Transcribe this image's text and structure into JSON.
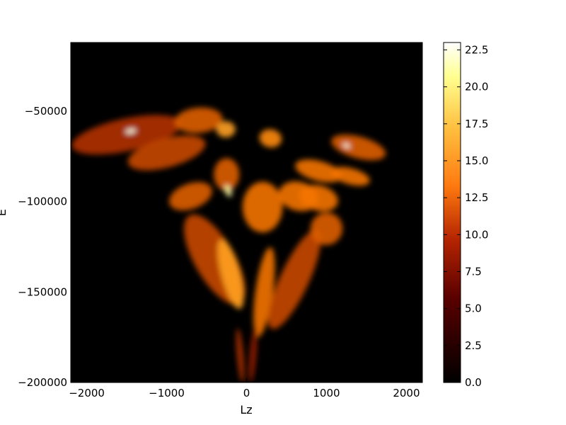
{
  "chart_data": {
    "type": "heatmap",
    "title": "",
    "xlabel": "Lz",
    "ylabel": "E",
    "xlim": [
      -2200,
      2200
    ],
    "ylim": [
      -200000,
      -12000
    ],
    "xticks": [
      -2000,
      -1000,
      0,
      1000,
      2000
    ],
    "xtick_labels": [
      "−2000",
      "−1000",
      "0",
      "1000",
      "2000"
    ],
    "yticks": [
      -50000,
      -100000,
      -150000,
      -200000
    ],
    "ytick_labels": [
      "−50000",
      "−100000",
      "−150000",
      "−200000"
    ],
    "background_value": 0,
    "colormap": "afmhot",
    "colorbar": {
      "min": 0,
      "max": 23,
      "ticks": [
        0,
        2.5,
        5,
        7.5,
        10,
        12.5,
        15,
        17.5,
        20,
        22.5
      ],
      "tick_labels": [
        "0.0",
        "2.5",
        "5.0",
        "7.5",
        "10.0",
        "12.5",
        "15.0",
        "17.5",
        "20.0",
        "22.5"
      ]
    },
    "grid": false,
    "features": [
      {
        "name": "left-upper-band",
        "x": -1500,
        "y": -63000,
        "sx": 700,
        "sy": 9000,
        "angle": -12,
        "value": 8
      },
      {
        "name": "left-mid-band",
        "x": -1000,
        "y": -73000,
        "sx": 500,
        "sy": 8000,
        "angle": -15,
        "value": 9
      },
      {
        "name": "top-center-lobe",
        "x": -600,
        "y": -55000,
        "sx": 300,
        "sy": 7000,
        "angle": -5,
        "value": 10
      },
      {
        "name": "top-small-lobe",
        "x": -260,
        "y": -60000,
        "sx": 120,
        "sy": 4500,
        "angle": 0,
        "value": 13
      },
      {
        "name": "top-right-lobe",
        "x": 300,
        "y": -65000,
        "sx": 140,
        "sy": 5000,
        "angle": 10,
        "value": 12
      },
      {
        "name": "center-left-lobe",
        "x": -250,
        "y": -85000,
        "sx": 160,
        "sy": 9000,
        "angle": 0,
        "value": 10
      },
      {
        "name": "left-streak",
        "x": -700,
        "y": -97000,
        "sx": 280,
        "sy": 7000,
        "angle": -20,
        "value": 10
      },
      {
        "name": "center-lobe",
        "x": 200,
        "y": -103000,
        "sx": 250,
        "sy": 14000,
        "angle": 0,
        "value": 11
      },
      {
        "name": "right-mid-lobe-1",
        "x": 650,
        "y": -97000,
        "sx": 250,
        "sy": 8000,
        "angle": 15,
        "value": 11
      },
      {
        "name": "right-mid-lobe-2",
        "x": 900,
        "y": -98000,
        "sx": 250,
        "sy": 7000,
        "angle": 15,
        "value": 11
      },
      {
        "name": "right-upper-band",
        "x": 1400,
        "y": -70000,
        "sx": 350,
        "sy": 6000,
        "angle": 15,
        "value": 10
      },
      {
        "name": "right-band-2",
        "x": 900,
        "y": -83000,
        "sx": 300,
        "sy": 5500,
        "angle": 15,
        "value": 11
      },
      {
        "name": "right-band-3",
        "x": 1300,
        "y": -86000,
        "sx": 250,
        "sy": 4500,
        "angle": 15,
        "value": 11
      },
      {
        "name": "left-diagonal-plume",
        "x": -400,
        "y": -132000,
        "sx": 250,
        "sy": 28000,
        "angle": -30,
        "value": 9
      },
      {
        "name": "left-plume-bright",
        "x": -200,
        "y": -140000,
        "sx": 120,
        "sy": 20000,
        "angle": -15,
        "value": 13
      },
      {
        "name": "center-plume",
        "x": 220,
        "y": -150000,
        "sx": 110,
        "sy": 25000,
        "angle": 8,
        "value": 11
      },
      {
        "name": "right-plume",
        "x": 600,
        "y": -143000,
        "sx": 180,
        "sy": 30000,
        "angle": 25,
        "value": 9
      },
      {
        "name": "right-plume-upper",
        "x": 1000,
        "y": -115000,
        "sx": 200,
        "sy": 9000,
        "angle": 35,
        "value": 10
      },
      {
        "name": "left-stem",
        "x": -80,
        "y": -185000,
        "sx": 40,
        "sy": 15000,
        "angle": -5,
        "value": 8
      },
      {
        "name": "right-stem",
        "x": 80,
        "y": -185000,
        "sx": 40,
        "sy": 15000,
        "angle": 5,
        "value": 7
      },
      {
        "name": "hotspot-left",
        "x": -1450,
        "y": -61000,
        "sx": 70,
        "sy": 1400,
        "angle": -10,
        "value": 22
      },
      {
        "name": "hotspot-right",
        "x": 1250,
        "y": -69000,
        "sx": 50,
        "sy": 1200,
        "angle": 20,
        "value": 22
      },
      {
        "name": "hotspot-center",
        "x": -230,
        "y": -94000,
        "sx": 40,
        "sy": 3500,
        "angle": -20,
        "value": 19
      }
    ]
  }
}
